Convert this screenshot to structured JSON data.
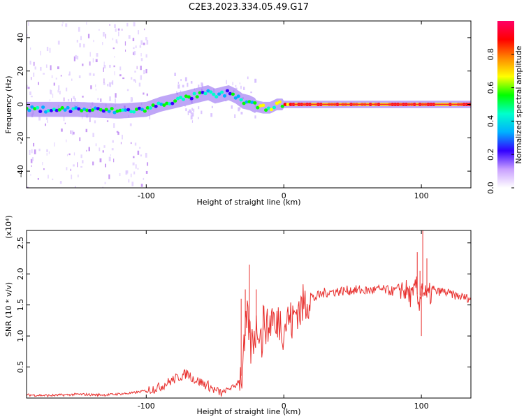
{
  "title": "C2E3.2023.334.05.49.G17",
  "chart_data": [
    {
      "type": "heatmap",
      "xlabel": "Height of straight line (km)",
      "ylabel": "Frequency (Hz)",
      "xlim": [
        -187,
        136
      ],
      "ylim": [
        -50,
        50
      ],
      "xticks": [
        -100,
        0,
        100
      ],
      "yticks": [
        -40,
        -20,
        0,
        20,
        40
      ],
      "xtick_labels": [
        "-100",
        "0",
        "100"
      ],
      "ytick_labels": [
        "-40",
        "-20",
        "0",
        "20",
        "40"
      ],
      "doppler_ridge": {
        "x": [
          -187,
          -150,
          -120,
          -100,
          -90,
          -80,
          -70,
          -60,
          -55,
          -50,
          -45,
          -40,
          -35,
          -30,
          -25,
          -20,
          -15,
          -10,
          -5,
          0,
          10,
          50,
          100,
          136
        ],
        "y": [
          -3,
          -3,
          -4,
          -3,
          0,
          2,
          4,
          6,
          7,
          5,
          6,
          7,
          5,
          2,
          1,
          -1,
          -2,
          -2,
          0,
          0,
          0,
          0,
          0,
          0
        ]
      },
      "colorbar": {
        "label": "Normalized spectral amplitude",
        "ticks": [
          0.0,
          0.2,
          0.4,
          0.6,
          0.8
        ],
        "tick_labels": [
          "0.0",
          "0.2",
          "0.4",
          "0.6",
          "0.8"
        ],
        "range": [
          0,
          1
        ],
        "colors": [
          "#ffffff",
          "#c9a0ff",
          "#3300ff",
          "#00b0ff",
          "#00ffcc",
          "#00ff00",
          "#ffff00",
          "#ff8800",
          "#ff0000",
          "#ff0066"
        ]
      }
    },
    {
      "type": "line",
      "xlabel": "Height of straight line (km)",
      "ylabel": "SNR (10 * v/v)",
      "y_multiplier_label": "(x10⁴)",
      "xlim": [
        -187,
        136
      ],
      "ylim": [
        0,
        2.7
      ],
      "xticks": [
        -100,
        0,
        100
      ],
      "yticks": [
        0.5,
        1.0,
        1.5,
        2.0,
        2.5
      ],
      "xtick_labels": [
        "-100",
        "0",
        "100"
      ],
      "ytick_labels": [
        "0.5",
        "1.0",
        "1.5",
        "2.0",
        "2.5"
      ],
      "color": "#e8302e",
      "series": [
        {
          "x": [
            -187,
            -170,
            -150,
            -130,
            -110,
            -100,
            -90,
            -80,
            -75,
            -70,
            -65,
            -60,
            -55,
            -50,
            -45,
            -40,
            -35,
            -30,
            -28,
            -26,
            -24,
            -22,
            -20,
            -18,
            -16,
            -14,
            -12,
            -10,
            -8,
            -6,
            -4,
            -2,
            0,
            2,
            4,
            6,
            8,
            10,
            12,
            14,
            16,
            18,
            20,
            22,
            25,
            30,
            40,
            50,
            60,
            70,
            80,
            85,
            90,
            94,
            96,
            98,
            100,
            102,
            104,
            108,
            115,
            125,
            136
          ],
          "y": [
            0.05,
            0.04,
            0.06,
            0.05,
            0.08,
            0.12,
            0.18,
            0.3,
            0.35,
            0.4,
            0.3,
            0.25,
            0.2,
            0.12,
            0.08,
            0.15,
            0.2,
            0.4,
            1.0,
            1.3,
            0.8,
            1.0,
            1.1,
            1.2,
            0.9,
            1.3,
            1.1,
            1.2,
            1.4,
            1.0,
            1.3,
            1.2,
            1.1,
            1.25,
            1.3,
            1.2,
            1.35,
            1.45,
            1.4,
            1.5,
            1.55,
            1.6,
            1.65,
            1.6,
            1.65,
            1.7,
            1.72,
            1.74,
            1.73,
            1.75,
            1.72,
            1.78,
            1.7,
            1.6,
            1.85,
            1.5,
            1.8,
            1.7,
            1.62,
            1.7,
            1.72,
            1.65,
            1.6
          ]
        }
      ],
      "spikes": {
        "x": [
          -25,
          -28,
          -31,
          -15,
          -20,
          97,
          99,
          100,
          101,
          104
        ],
        "y": [
          2.15,
          1.75,
          1.6,
          1.5,
          1.75,
          2.35,
          2.05,
          1.0,
          2.7,
          2.25
        ]
      }
    }
  ]
}
